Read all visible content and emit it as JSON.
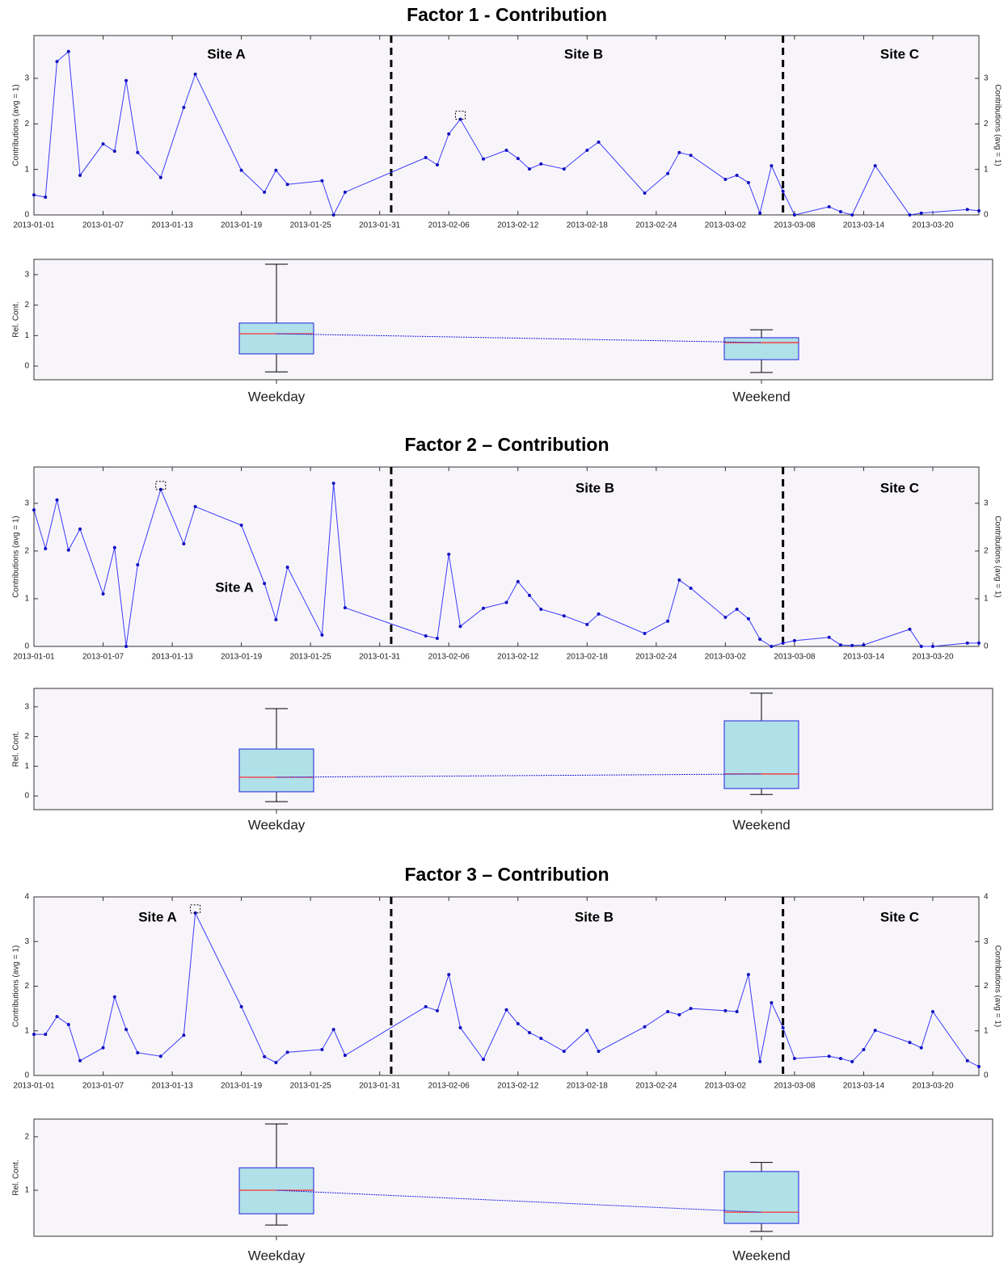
{
  "chart_data": [
    {
      "type": "line",
      "title": "Factor 1 - Contribution",
      "ylabel": "Contributions (avg = 1)",
      "right_axis": true,
      "annotations": [
        "Site A",
        "Site B",
        "Site C"
      ],
      "dividers": [
        "2013-02-01",
        "2013-03-07"
      ],
      "x": [
        "2013-01-01",
        "2013-01-02",
        "2013-01-03",
        "2013-01-04",
        "2013-01-05",
        "2013-01-07",
        "2013-01-08",
        "2013-01-09",
        "2013-01-10",
        "2013-01-12",
        "2013-01-14",
        "2013-01-15",
        "2013-01-19",
        "2013-01-21",
        "2013-01-22",
        "2013-01-23",
        "2013-01-26",
        "2013-01-27",
        "2013-01-28",
        "2013-02-04",
        "2013-02-05",
        "2013-02-06",
        "2013-02-07",
        "2013-02-09",
        "2013-02-11",
        "2013-02-12",
        "2013-02-13",
        "2013-02-14",
        "2013-02-16",
        "2013-02-18",
        "2013-02-19",
        "2013-02-23",
        "2013-02-25",
        "2013-02-26",
        "2013-02-27",
        "2013-03-02",
        "2013-03-03",
        "2013-03-04",
        "2013-03-05",
        "2013-03-06",
        "2013-03-07",
        "2013-03-08",
        "2013-03-11",
        "2013-03-12",
        "2013-03-13",
        "2013-03-15",
        "2013-03-18",
        "2013-03-19",
        "2013-03-23",
        "2013-03-24"
      ],
      "values": [
        0.44,
        0.39,
        3.37,
        3.59,
        0.87,
        1.56,
        1.4,
        2.95,
        1.37,
        0.82,
        2.36,
        3.09,
        0.98,
        0.5,
        0.98,
        0.67,
        0.75,
        0,
        0.5,
        1.26,
        1.1,
        1.78,
        2.1,
        1.23,
        1.42,
        1.24,
        1.01,
        1.12,
        1.01,
        1.42,
        1.6,
        0.48,
        0.91,
        1.37,
        1.31,
        0.78,
        0.87,
        0.71,
        0.04,
        1.08,
        0.52,
        0,
        0.18,
        0.07,
        0,
        1.08,
        0,
        0.04,
        0.12,
        0.09
      ],
      "highlight": 22,
      "color": "#3a3aff",
      "xlim": [
        "2013-01-01",
        "2013-03-24"
      ],
      "xticks": [
        "2013-01-01",
        "2013-01-07",
        "2013-01-13",
        "2013-01-19",
        "2013-01-25",
        "2013-01-31",
        "2013-02-06",
        "2013-02-12",
        "2013-02-18",
        "2013-02-24",
        "2013-03-02",
        "2013-03-08",
        "2013-03-14",
        "2013-03-20"
      ],
      "ylim": [
        0,
        3.94
      ],
      "yticks": [
        0,
        1,
        2,
        3
      ]
    },
    {
      "type": "box",
      "ylabel": "Rel. Cont.",
      "categories": [
        "Weekday",
        "Weekend"
      ],
      "boxes": [
        {
          "whisker_low": -0.19,
          "q1": 0.4,
          "median": 1.06,
          "q3": 1.41,
          "whisker_high": 3.34
        },
        {
          "whisker_low": -0.21,
          "q1": 0.21,
          "median": 0.77,
          "q3": 0.93,
          "whisker_high": 1.19
        }
      ],
      "box_color": "#b0e0e8",
      "median_color": "#ff2020",
      "ylim": [
        -0.45,
        3.5
      ],
      "yticks": [
        0,
        1,
        2,
        3
      ]
    },
    {
      "type": "line",
      "title": "Factor 2 – Contribution",
      "ylabel": "Contributions (avg = 1)",
      "right_axis": true,
      "annotations": [
        "Site A",
        "Site B",
        "Site C"
      ],
      "dividers": [
        "2013-02-01",
        "2013-03-07"
      ],
      "x": [
        "2013-01-01",
        "2013-01-02",
        "2013-01-03",
        "2013-01-04",
        "2013-01-05",
        "2013-01-07",
        "2013-01-08",
        "2013-01-09",
        "2013-01-10",
        "2013-01-12",
        "2013-01-14",
        "2013-01-15",
        "2013-01-19",
        "2013-01-21",
        "2013-01-22",
        "2013-01-23",
        "2013-01-26",
        "2013-01-27",
        "2013-01-28",
        "2013-02-04",
        "2013-02-05",
        "2013-02-06",
        "2013-02-07",
        "2013-02-09",
        "2013-02-11",
        "2013-02-12",
        "2013-02-13",
        "2013-02-14",
        "2013-02-16",
        "2013-02-18",
        "2013-02-19",
        "2013-02-23",
        "2013-02-25",
        "2013-02-26",
        "2013-02-27",
        "2013-03-02",
        "2013-03-03",
        "2013-03-04",
        "2013-03-05",
        "2013-03-06",
        "2013-03-07",
        "2013-03-08",
        "2013-03-11",
        "2013-03-12",
        "2013-03-13",
        "2013-03-14",
        "2013-03-18",
        "2013-03-19",
        "2013-03-20",
        "2013-03-23",
        "2013-03-24"
      ],
      "values": [
        2.86,
        2.05,
        3.07,
        2.02,
        2.46,
        1.1,
        2.07,
        0,
        1.71,
        3.29,
        2.15,
        2.93,
        2.54,
        1.32,
        0.56,
        1.66,
        0.24,
        3.42,
        0.81,
        0.22,
        0.17,
        1.93,
        0.42,
        0.8,
        0.92,
        1.36,
        1.07,
        0.78,
        0.64,
        0.46,
        0.68,
        0.27,
        0.53,
        1.39,
        1.22,
        0.61,
        0.78,
        0.58,
        0.15,
        0,
        0.07,
        0.12,
        0.19,
        0.03,
        0.02,
        0.03,
        0.36,
        0,
        0,
        0.07,
        0.07
      ],
      "highlight": 9,
      "color": "#3a3aff",
      "xlim": [
        "2013-01-01",
        "2013-03-24"
      ],
      "xticks": [
        "2013-01-01",
        "2013-01-07",
        "2013-01-13",
        "2013-01-19",
        "2013-01-25",
        "2013-01-31",
        "2013-02-06",
        "2013-02-12",
        "2013-02-18",
        "2013-02-24",
        "2013-03-02",
        "2013-03-08",
        "2013-03-14",
        "2013-03-20"
      ],
      "ylim": [
        0,
        3.76
      ],
      "yticks": [
        0,
        1,
        2,
        3
      ]
    },
    {
      "type": "box",
      "ylabel": "Rel. Cont.",
      "categories": [
        "Weekday",
        "Weekend"
      ],
      "boxes": [
        {
          "whisker_low": -0.19,
          "q1": 0.14,
          "median": 0.63,
          "q3": 1.58,
          "whisker_high": 2.94
        },
        {
          "whisker_low": 0.05,
          "q1": 0.25,
          "median": 0.74,
          "q3": 2.53,
          "whisker_high": 3.46
        }
      ],
      "box_color": "#b0e0e8",
      "median_color": "#ff2020",
      "ylim": [
        -0.46,
        3.62
      ],
      "yticks": [
        0,
        1,
        2,
        3
      ]
    },
    {
      "type": "line",
      "title": "Factor 3 – Contribution",
      "ylabel": "Contributions (avg = 1)",
      "right_axis": true,
      "annotations": [
        "Site A",
        "Site B",
        "Site C"
      ],
      "dividers": [
        "2013-02-01",
        "2013-03-07"
      ],
      "x": [
        "2013-01-01",
        "2013-01-02",
        "2013-01-03",
        "2013-01-04",
        "2013-01-05",
        "2013-01-07",
        "2013-01-08",
        "2013-01-09",
        "2013-01-10",
        "2013-01-12",
        "2013-01-14",
        "2013-01-15",
        "2013-01-19",
        "2013-01-21",
        "2013-01-22",
        "2013-01-23",
        "2013-01-26",
        "2013-01-27",
        "2013-01-28",
        "2013-02-04",
        "2013-02-05",
        "2013-02-06",
        "2013-02-07",
        "2013-02-09",
        "2013-02-11",
        "2013-02-12",
        "2013-02-13",
        "2013-02-14",
        "2013-02-16",
        "2013-02-18",
        "2013-02-19",
        "2013-02-23",
        "2013-02-25",
        "2013-02-26",
        "2013-02-27",
        "2013-03-02",
        "2013-03-03",
        "2013-03-04",
        "2013-03-05",
        "2013-03-06",
        "2013-03-07",
        "2013-03-08",
        "2013-03-11",
        "2013-03-12",
        "2013-03-13",
        "2013-03-14",
        "2013-03-15",
        "2013-03-18",
        "2013-03-19",
        "2013-03-20",
        "2013-03-23",
        "2013-03-24"
      ],
      "values": [
        0.92,
        0.92,
        1.32,
        1.14,
        0.33,
        0.62,
        1.76,
        1.03,
        0.51,
        0.43,
        0.9,
        3.64,
        1.54,
        0.42,
        0.29,
        0.52,
        0.58,
        1.03,
        0.45,
        1.54,
        1.45,
        2.26,
        1.07,
        0.36,
        1.47,
        1.16,
        0.96,
        0.83,
        0.54,
        1.01,
        0.54,
        1.09,
        1.43,
        1.36,
        1.5,
        1.45,
        1.43,
        2.26,
        0.31,
        1.63,
        1.07,
        0.38,
        0.43,
        0.38,
        0.31,
        0.58,
        1.01,
        0.74,
        0.62,
        1.43,
        0.33,
        0.2
      ],
      "highlight": 11,
      "color": "#3a3aff",
      "xlim": [
        "2013-01-01",
        "2013-03-24"
      ],
      "xticks": [
        "2013-01-01",
        "2013-01-07",
        "2013-01-13",
        "2013-01-19",
        "2013-01-25",
        "2013-01-31",
        "2013-02-06",
        "2013-02-12",
        "2013-02-18",
        "2013-02-24",
        "2013-03-02",
        "2013-03-08",
        "2013-03-14",
        "2013-03-20"
      ],
      "ylim": [
        0,
        4
      ],
      "yticks": [
        0,
        1,
        2,
        3,
        4
      ]
    },
    {
      "type": "box",
      "ylabel": "Rel. Cont.",
      "categories": [
        "Weekday",
        "Weekend"
      ],
      "boxes": [
        {
          "whisker_low": 0.35,
          "q1": 0.56,
          "median": 1.0,
          "q3": 1.42,
          "whisker_high": 2.24
        },
        {
          "whisker_low": 0.23,
          "q1": 0.38,
          "median": 0.59,
          "q3": 1.35,
          "whisker_high": 1.52
        }
      ],
      "box_color": "#b0e0e8",
      "median_color": "#ff2020",
      "ylim": [
        0.14,
        2.33
      ],
      "yticks": [
        1,
        2
      ]
    }
  ]
}
